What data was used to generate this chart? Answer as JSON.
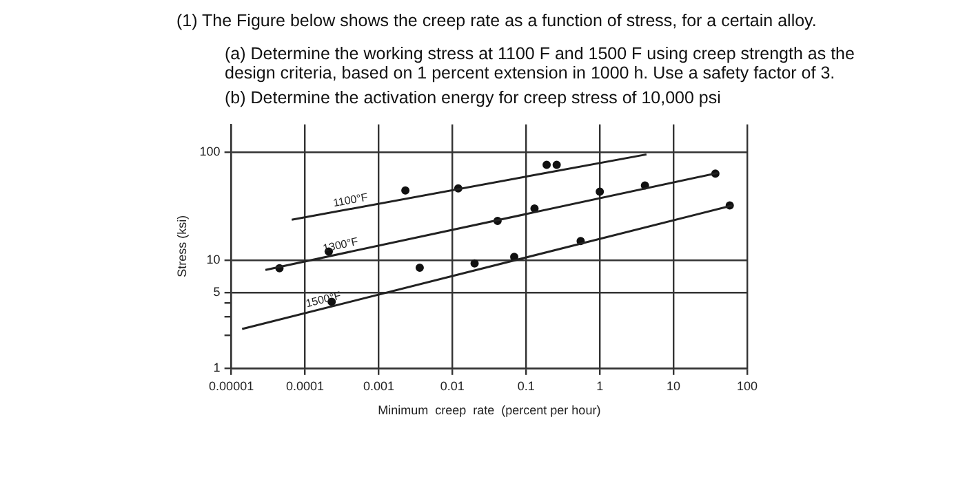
{
  "chart_data": {
    "type": "scatter",
    "title": "(1) The Figure below shows the creep rate as a function of stress, for a certain alloy.",
    "annotations": [
      "(a) Determine the working stress at 1100 F and 1500 F using creep strength as the design criteria, based on 1 percent extension in 1000 h. Use a safety factor of 3.",
      "(b) Determine the activation energy for creep stress of 10,000 psi"
    ],
    "xlabel": "Minimum  creep  rate  (percent per hour)",
    "ylabel": "Stress (ksi)",
    "log": "xy",
    "grid": true,
    "legend": false,
    "line_style": "solid",
    "xlim": [
      1e-05,
      100
    ],
    "ylim": [
      1,
      180
    ],
    "xticks": [
      {
        "value": 1e-05,
        "label": "0.00001"
      },
      0.0001,
      0.001,
      0.01,
      0.1,
      1,
      10,
      100
    ],
    "yticks": [
      1,
      {
        "value": 2,
        "label": null
      },
      {
        "value": 3,
        "label": null
      },
      {
        "value": 4,
        "label": null
      },
      5,
      10,
      100
    ],
    "series": [
      {
        "name": "1100°F",
        "type": "line",
        "marker": "none",
        "color": "#222222",
        "x": [
          6.6e-05,
          4.3
        ],
        "values": [
          23.6,
          95
        ]
      },
      {
        "name": "1300°F",
        "type": "line",
        "marker": "none",
        "color": "#222222",
        "x": [
          2.9e-05,
          40
        ],
        "values": [
          8.1,
          64
        ]
      },
      {
        "name": "1500°F",
        "type": "line",
        "marker": "none",
        "color": "#222222",
        "x": [
          1.4e-05,
          63
        ],
        "values": [
          2.3,
          32
        ]
      },
      {
        "marker": "circle",
        "color": "#111111",
        "x": [
          0.0023,
          0.012,
          0.19,
          0.26,
          4.5e-05,
          0.00021,
          0.041,
          0.13,
          1.0,
          4.1,
          37,
          0.00023,
          0.0036,
          0.02,
          0.069,
          0.55,
          58
        ],
        "values": [
          44,
          46,
          76,
          76,
          8.4,
          12,
          23,
          30,
          43,
          49,
          63,
          4.1,
          8.5,
          9.3,
          10.7,
          15,
          32
        ]
      }
    ]
  }
}
